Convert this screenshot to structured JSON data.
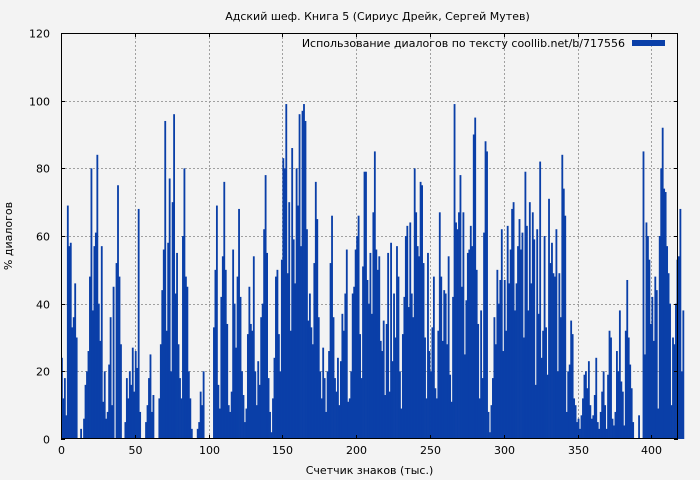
{
  "chart_data": {
    "type": "bar",
    "title": "Адский шеф. Книга 5 (Сириус Дрейк, Сергей Мутев)",
    "xlabel": "Счетчик знаков (тыс.)",
    "ylabel": "% диалогов",
    "xlim": [
      0,
      418
    ],
    "ylim": [
      0,
      120
    ],
    "xticks": [
      0,
      50,
      100,
      150,
      200,
      250,
      300,
      350,
      400
    ],
    "yticks": [
      0,
      20,
      40,
      60,
      80,
      100,
      120
    ],
    "grid": true,
    "legend_position": "top-right",
    "series": [
      {
        "name": "Использование диалогов по тексту coollib.net/b/717556",
        "color": "#0a3fa8",
        "x_step": 1,
        "values": [
          24,
          12,
          18,
          7,
          69,
          57,
          58,
          33,
          36,
          46,
          30,
          0,
          0,
          3,
          0,
          6,
          16,
          20,
          26,
          48,
          80,
          38,
          57,
          61,
          84,
          40,
          29,
          57,
          11,
          20,
          6,
          8,
          22,
          36,
          10,
          45,
          0,
          52,
          75,
          48,
          28,
          0,
          0,
          5,
          18,
          12,
          20,
          16,
          27,
          14,
          26,
          21,
          68,
          8,
          0,
          0,
          0,
          5,
          10,
          18,
          25,
          8,
          13,
          0,
          0,
          0,
          12,
          28,
          44,
          56,
          94,
          32,
          58,
          77,
          20,
          70,
          96,
          43,
          55,
          28,
          18,
          12,
          60,
          80,
          48,
          45,
          20,
          12,
          3,
          0,
          0,
          0,
          3,
          5,
          14,
          10,
          20,
          0,
          0,
          0,
          0,
          0,
          0,
          33,
          50,
          69,
          16,
          9,
          42,
          54,
          76,
          50,
          34,
          10,
          8,
          14,
          56,
          40,
          27,
          48,
          68,
          42,
          20,
          13,
          5,
          9,
          31,
          45,
          34,
          32,
          54,
          20,
          10,
          23,
          16,
          36,
          40,
          62,
          78,
          55,
          18,
          8,
          2,
          12,
          24,
          48,
          50,
          31,
          20,
          53,
          83,
          80,
          99,
          49,
          70,
          32,
          86,
          59,
          46,
          80,
          69,
          96,
          57,
          97,
          99,
          94,
          62,
          35,
          43,
          33,
          28,
          52,
          76,
          65,
          36,
          20,
          12,
          27,
          18,
          8,
          20,
          26,
          52,
          66,
          36,
          18,
          14,
          24,
          10,
          23,
          37,
          32,
          43,
          56,
          11,
          12,
          20,
          43,
          45,
          56,
          60,
          66,
          31,
          18,
          51,
          79,
          79,
          47,
          40,
          55,
          37,
          67,
          85,
          56,
          50,
          54,
          29,
          26,
          35,
          13,
          34,
          55,
          14,
          58,
          23,
          43,
          30,
          57,
          48,
          20,
          9,
          31,
          42,
          60,
          63,
          39,
          64,
          43,
          36,
          80,
          67,
          57,
          54,
          76,
          75,
          52,
          30,
          12,
          55,
          26,
          20,
          33,
          48,
          15,
          12,
          32,
          67,
          48,
          29,
          44,
          43,
          28,
          54,
          19,
          11,
          42,
          99,
          64,
          62,
          67,
          78,
          45,
          67,
          25,
          41,
          55,
          56,
          63,
          57,
          90,
          95,
          50,
          34,
          12,
          38,
          18,
          61,
          88,
          85,
          8,
          2,
          10,
          18,
          36,
          28,
          50,
          40,
          47,
          62,
          26,
          47,
          32,
          63,
          46,
          56,
          68,
          70,
          38,
          46,
          57,
          65,
          56,
          61,
          30,
          79,
          63,
          38,
          70,
          46,
          67,
          59,
          16,
          62,
          37,
          82,
          24,
          32,
          60,
          33,
          19,
          71,
          52,
          58,
          49,
          48,
          62,
          20,
          49,
          36,
          84,
          74,
          66,
          8,
          20,
          22,
          35,
          31,
          12,
          10,
          5,
          6,
          3,
          7,
          12,
          19,
          20,
          15,
          23,
          10,
          6,
          7,
          13,
          24,
          5,
          3,
          8,
          14,
          20,
          10,
          3,
          19,
          32,
          30,
          6,
          4,
          8,
          26,
          20,
          38,
          17,
          14,
          4,
          32,
          47,
          30,
          22,
          15,
          5,
          0,
          0,
          0,
          7,
          0,
          0,
          85,
          25,
          64,
          60,
          53,
          34,
          42,
          29,
          48,
          44,
          9,
          60,
          80,
          92,
          74,
          73,
          57,
          49,
          40,
          10,
          30,
          28,
          40,
          53,
          54,
          68,
          20,
          38,
          0
        ]
      }
    ]
  }
}
